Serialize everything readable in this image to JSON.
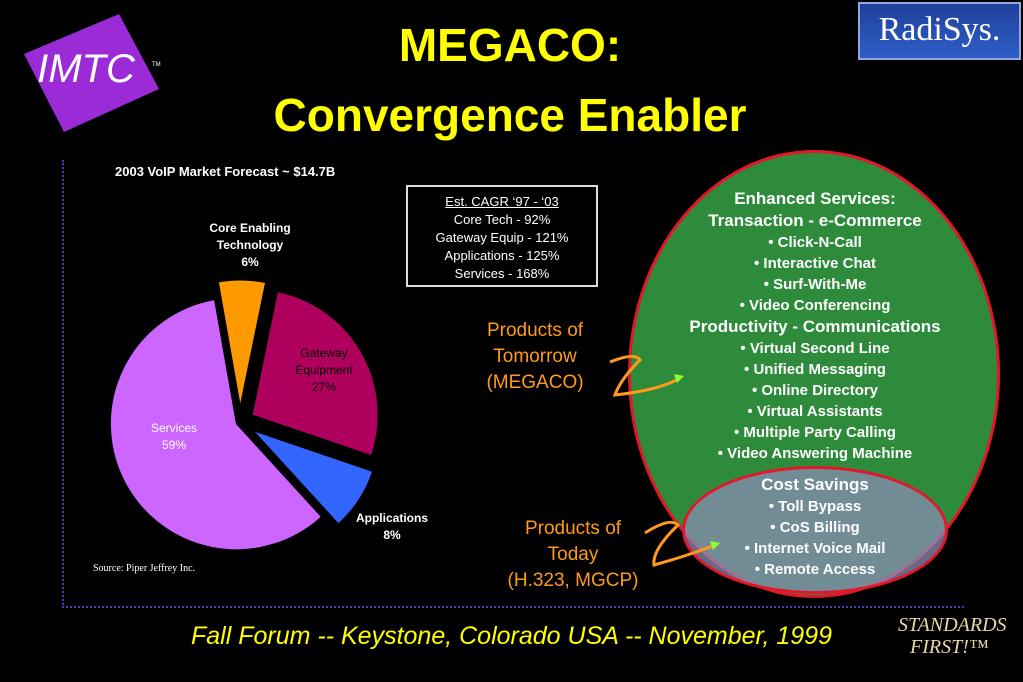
{
  "logos": {
    "imtc": "IMTC",
    "imtc_tm": "TM",
    "radisys": "RadiSys."
  },
  "title": {
    "line1": "MEGACO:",
    "line2": "Convergence Enabler"
  },
  "cagr": {
    "title": "Est. CAGR ‘97 - ‘03",
    "lines": [
      "Core Tech - 92%",
      "Gateway Equip - 121%",
      "Applications - 125%",
      "Services - 168%"
    ]
  },
  "source": "Source:  Piper Jeffrey Inc.",
  "products_tomorrow": [
    "Products of",
    "Tomorrow",
    "(MEGACO)"
  ],
  "products_today": [
    "Products of",
    "Today",
    "(H.323, MGCP)"
  ],
  "services": {
    "enhanced_heading": "Enhanced Services:",
    "transaction_heading": "Transaction - e-Commerce",
    "transaction_items": [
      "•  Click-N-Call",
      "•  Interactive Chat",
      "•  Surf-With-Me",
      "•  Video Conferencing"
    ],
    "productivity_heading": "Productivity - Communications",
    "productivity_items": [
      "• Virtual Second Line",
      "•  Unified Messaging",
      "•  Online Directory",
      "•  Virtual Assistants",
      "•  Multiple Party Calling",
      "•  Video Answering Machine"
    ],
    "cost_heading": "Cost Savings",
    "cost_items": [
      "•  Toll Bypass",
      "•  CoS Billing",
      "•  Internet Voice Mail",
      "•  Remote Access"
    ]
  },
  "footer": "Fall Forum -- Keystone, Colorado USA -- November, 1999",
  "standards": {
    "line1": "STANDARDS",
    "line2": "FIRST!™"
  },
  "colors": {
    "title": "#ffff00",
    "services_slice": "#cc66ff",
    "gateway_slice": "#b0005e",
    "core_slice": "#ff9900",
    "applications_slice": "#3366ff",
    "oval_fill": "#2e8b3c",
    "oval_border": "#e2182a",
    "orange_label": "#ff9a1a"
  },
  "chart_data": {
    "type": "pie",
    "title": "2003 VoIP Market Forecast ~ $14.7B",
    "slices": [
      {
        "name": "Core Enabling Technology",
        "label_lines": [
          "Core Enabling",
          "Technology",
          "6%"
        ],
        "value": 6,
        "color": "#ff9900"
      },
      {
        "name": "Gateway Equipment",
        "label_lines": [
          "Gateway",
          "Equipment",
          "27%"
        ],
        "value": 27,
        "color": "#b0005e"
      },
      {
        "name": "Applications",
        "label_lines": [
          "Applications",
          "8%"
        ],
        "value": 8,
        "color": "#3366ff"
      },
      {
        "name": "Services",
        "label_lines": [
          "Services",
          "59%"
        ],
        "value": 59,
        "color": "#cc66ff"
      }
    ]
  }
}
